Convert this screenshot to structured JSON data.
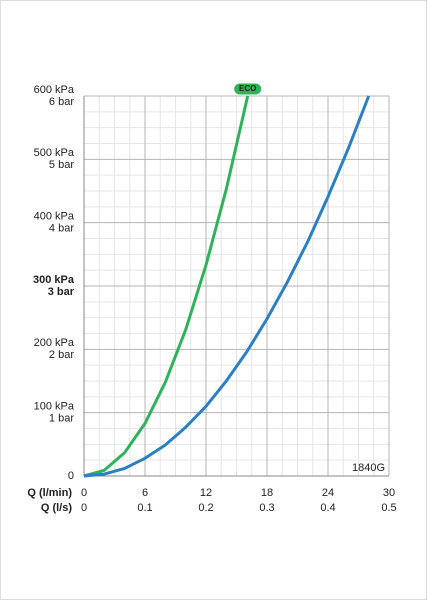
{
  "chart_data": {
    "type": "line",
    "xlabel": "Q (l/min)",
    "x2label": "Q (l/s)",
    "xlim": [
      0,
      30
    ],
    "xticks": [
      0,
      6,
      12,
      18,
      24,
      30
    ],
    "x2lim": [
      0,
      0.5
    ],
    "x2ticks": [
      0,
      0.1,
      0.2,
      0.3,
      0.4,
      0.5
    ],
    "ylim": [
      0,
      600
    ],
    "yticks": [
      0,
      {
        "value": 100,
        "label": "100 kPa"
      },
      {
        "value": 200,
        "label": "200 kPa"
      },
      {
        "value": 300,
        "label": "300 kPa"
      },
      {
        "value": 400,
        "label": "400 kPa"
      },
      {
        "value": 500,
        "label": "500 kPa"
      },
      {
        "value": 600,
        "label": "600 kPa"
      }
    ],
    "ytick_sublabels": [
      null,
      "1 bar",
      "2 bar",
      "3 bar",
      "4 bar",
      "5 bar",
      "6 bar"
    ],
    "emphasized_ytick": 300,
    "grid": true,
    "minor_grid_divisions": 4,
    "watermark": "1840G",
    "series": [
      {
        "name": "ECO",
        "color": "#2eb35b",
        "x": [
          0,
          2,
          4,
          6,
          8,
          10,
          12,
          14,
          16.1
        ],
        "values": [
          0,
          9,
          37,
          83,
          148,
          231,
          333,
          453,
          600
        ]
      },
      {
        "color": "#2b7fc3",
        "x": [
          0,
          2,
          4,
          6,
          8,
          10,
          12,
          14,
          16,
          18,
          20,
          22,
          24,
          26,
          28
        ],
        "values": [
          0,
          3,
          12,
          28,
          49,
          77,
          110,
          150,
          196,
          248,
          306,
          370,
          441,
          517,
          600
        ]
      }
    ]
  }
}
